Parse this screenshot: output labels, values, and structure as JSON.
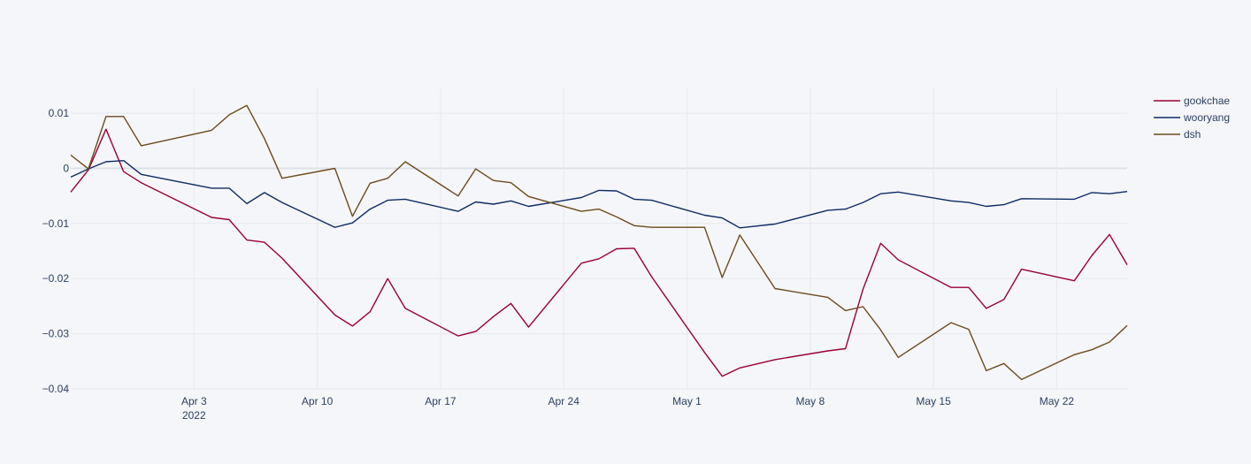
{
  "chart_data": {
    "type": "line",
    "title": "",
    "xlabel": "",
    "ylabel": "",
    "ylim": [
      -0.04,
      0.0145
    ],
    "xlim": [
      "2022-03-27",
      "2022-05-26"
    ],
    "grid": true,
    "legend": "top-right",
    "xticks": [
      {
        "date": "2022-04-03",
        "label": "Apr 3",
        "sublabel": "2022"
      },
      {
        "date": "2022-04-10",
        "label": "Apr 10"
      },
      {
        "date": "2022-04-17",
        "label": "Apr 17"
      },
      {
        "date": "2022-04-24",
        "label": "Apr 24"
      },
      {
        "date": "2022-05-01",
        "label": "May 1"
      },
      {
        "date": "2022-05-08",
        "label": "May 8"
      },
      {
        "date": "2022-05-15",
        "label": "May 15"
      },
      {
        "date": "2022-05-22",
        "label": "May 22"
      }
    ],
    "yticks": [
      {
        "value": 0.01,
        "label": "0.01"
      },
      {
        "value": 0,
        "label": "0"
      },
      {
        "value": -0.01,
        "label": "−0.01"
      },
      {
        "value": -0.02,
        "label": "−0.02"
      },
      {
        "value": -0.03,
        "label": "−0.03"
      },
      {
        "value": -0.04,
        "label": "−0.04"
      }
    ],
    "x": [
      "2022-03-27",
      "2022-03-28",
      "2022-03-29",
      "2022-03-30",
      "2022-03-31",
      "2022-04-04",
      "2022-04-05",
      "2022-04-06",
      "2022-04-07",
      "2022-04-08",
      "2022-04-11",
      "2022-04-12",
      "2022-04-13",
      "2022-04-14",
      "2022-04-15",
      "2022-04-18",
      "2022-04-19",
      "2022-04-20",
      "2022-04-21",
      "2022-04-22",
      "2022-04-25",
      "2022-04-26",
      "2022-04-27",
      "2022-04-28",
      "2022-04-29",
      "2022-05-02",
      "2022-05-03",
      "2022-05-04",
      "2022-05-06",
      "2022-05-09",
      "2022-05-10",
      "2022-05-11",
      "2022-05-12",
      "2022-05-13",
      "2022-05-16",
      "2022-05-17",
      "2022-05-18",
      "2022-05-19",
      "2022-05-20",
      "2022-05-23",
      "2022-05-24",
      "2022-05-25",
      "2022-05-26"
    ],
    "series": [
      {
        "name": "gookchae",
        "color": "#990033",
        "values": [
          -0.0043,
          -0.0003,
          0.0071,
          -0.0006,
          -0.0026,
          -0.0089,
          -0.0093,
          -0.013,
          -0.0134,
          -0.0163,
          -0.0266,
          -0.0286,
          -0.026,
          -0.02,
          -0.0254,
          -0.0304,
          -0.0296,
          -0.0269,
          -0.0245,
          -0.0288,
          -0.0172,
          -0.0164,
          -0.0146,
          -0.0145,
          -0.0197,
          -0.0334,
          -0.0377,
          -0.0362,
          -0.0347,
          -0.0331,
          -0.0327,
          -0.0219,
          -0.0136,
          -0.0166,
          -0.0216,
          -0.0216,
          -0.0254,
          -0.0238,
          -0.0183,
          -0.0204,
          -0.0158,
          -0.012,
          -0.0175
        ]
      },
      {
        "name": "wooryang",
        "color": "#0d2a63",
        "values": [
          -0.0016,
          -0.0001,
          0.0012,
          0.0014,
          -0.0011,
          -0.0036,
          -0.0036,
          -0.0064,
          -0.0044,
          -0.0062,
          -0.0107,
          -0.0099,
          -0.0074,
          -0.0058,
          -0.0056,
          -0.0078,
          -0.0061,
          -0.0065,
          -0.0059,
          -0.0069,
          -0.0053,
          -0.004,
          -0.0041,
          -0.0056,
          -0.0058,
          -0.0085,
          -0.009,
          -0.0108,
          -0.0101,
          -0.0076,
          -0.0074,
          -0.0062,
          -0.0046,
          -0.0043,
          -0.0059,
          -0.0062,
          -0.0069,
          -0.0066,
          -0.0055,
          -0.0056,
          -0.0044,
          -0.0046,
          -0.0042
        ]
      },
      {
        "name": "dsh",
        "color": "#6a4a1f",
        "values": [
          0.0024,
          -0.0001,
          0.0094,
          0.0094,
          0.0041,
          0.0069,
          0.0097,
          0.0114,
          0.0054,
          -0.0018,
          0.0,
          -0.0087,
          -0.0027,
          -0.0018,
          0.0012,
          -0.005,
          -0.0001,
          -0.0022,
          -0.0026,
          -0.0051,
          -0.0078,
          -0.0074,
          -0.0088,
          -0.0104,
          -0.0107,
          -0.0107,
          -0.0198,
          -0.0121,
          -0.0218,
          -0.0234,
          -0.0258,
          -0.0251,
          -0.0293,
          -0.0343,
          -0.028,
          -0.0292,
          -0.0367,
          -0.0354,
          -0.0383,
          -0.0338,
          -0.0329,
          -0.0315,
          -0.0285
        ]
      }
    ]
  }
}
